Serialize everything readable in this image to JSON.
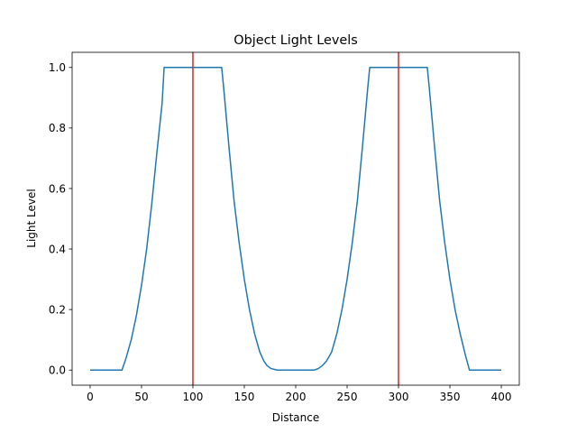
{
  "chart_data": {
    "type": "line",
    "title": "Object Light Levels",
    "xlabel": "Distance",
    "ylabel": "Light Level",
    "xlim": [
      -17.5,
      417.5
    ],
    "ylim": [
      -0.05,
      1.05
    ],
    "xticks": [
      0,
      50,
      100,
      150,
      200,
      250,
      300,
      350,
      400
    ],
    "yticks": [
      0.0,
      0.2,
      0.4,
      0.6,
      0.8,
      1.0
    ],
    "xtick_labels": [
      "0",
      "50",
      "100",
      "150",
      "200",
      "250",
      "300",
      "350",
      "400"
    ],
    "ytick_labels": [
      "0.0",
      "0.2",
      "0.4",
      "0.6",
      "0.8",
      "1.0"
    ],
    "grid": false,
    "series": [
      {
        "color": "#1f77b4",
        "x": [
          0,
          31,
          35,
          40,
          45,
          50,
          55,
          60,
          65,
          70,
          72,
          74,
          128,
          130,
          135,
          140,
          145,
          150,
          155,
          160,
          165,
          169,
          172,
          176,
          182,
          218,
          222,
          226,
          230,
          235,
          240,
          245,
          250,
          255,
          260,
          265,
          270,
          272,
          274,
          328,
          330,
          335,
          340,
          345,
          350,
          355,
          360,
          365,
          369,
          400
        ],
        "y": [
          0.0,
          0.0,
          0.04,
          0.1,
          0.18,
          0.28,
          0.4,
          0.55,
          0.72,
          0.88,
          1.0,
          1.0,
          1.0,
          0.93,
          0.74,
          0.56,
          0.42,
          0.3,
          0.2,
          0.12,
          0.06,
          0.03,
          0.015,
          0.005,
          0.0,
          0.0,
          0.005,
          0.015,
          0.03,
          0.06,
          0.12,
          0.2,
          0.3,
          0.42,
          0.56,
          0.74,
          0.93,
          1.0,
          1.0,
          1.0,
          0.93,
          0.74,
          0.56,
          0.42,
          0.3,
          0.2,
          0.12,
          0.05,
          0.0,
          0.0
        ]
      }
    ],
    "vlines": [
      {
        "x": 100,
        "color": "#d62728"
      },
      {
        "x": 300,
        "color": "#d62728"
      }
    ]
  }
}
